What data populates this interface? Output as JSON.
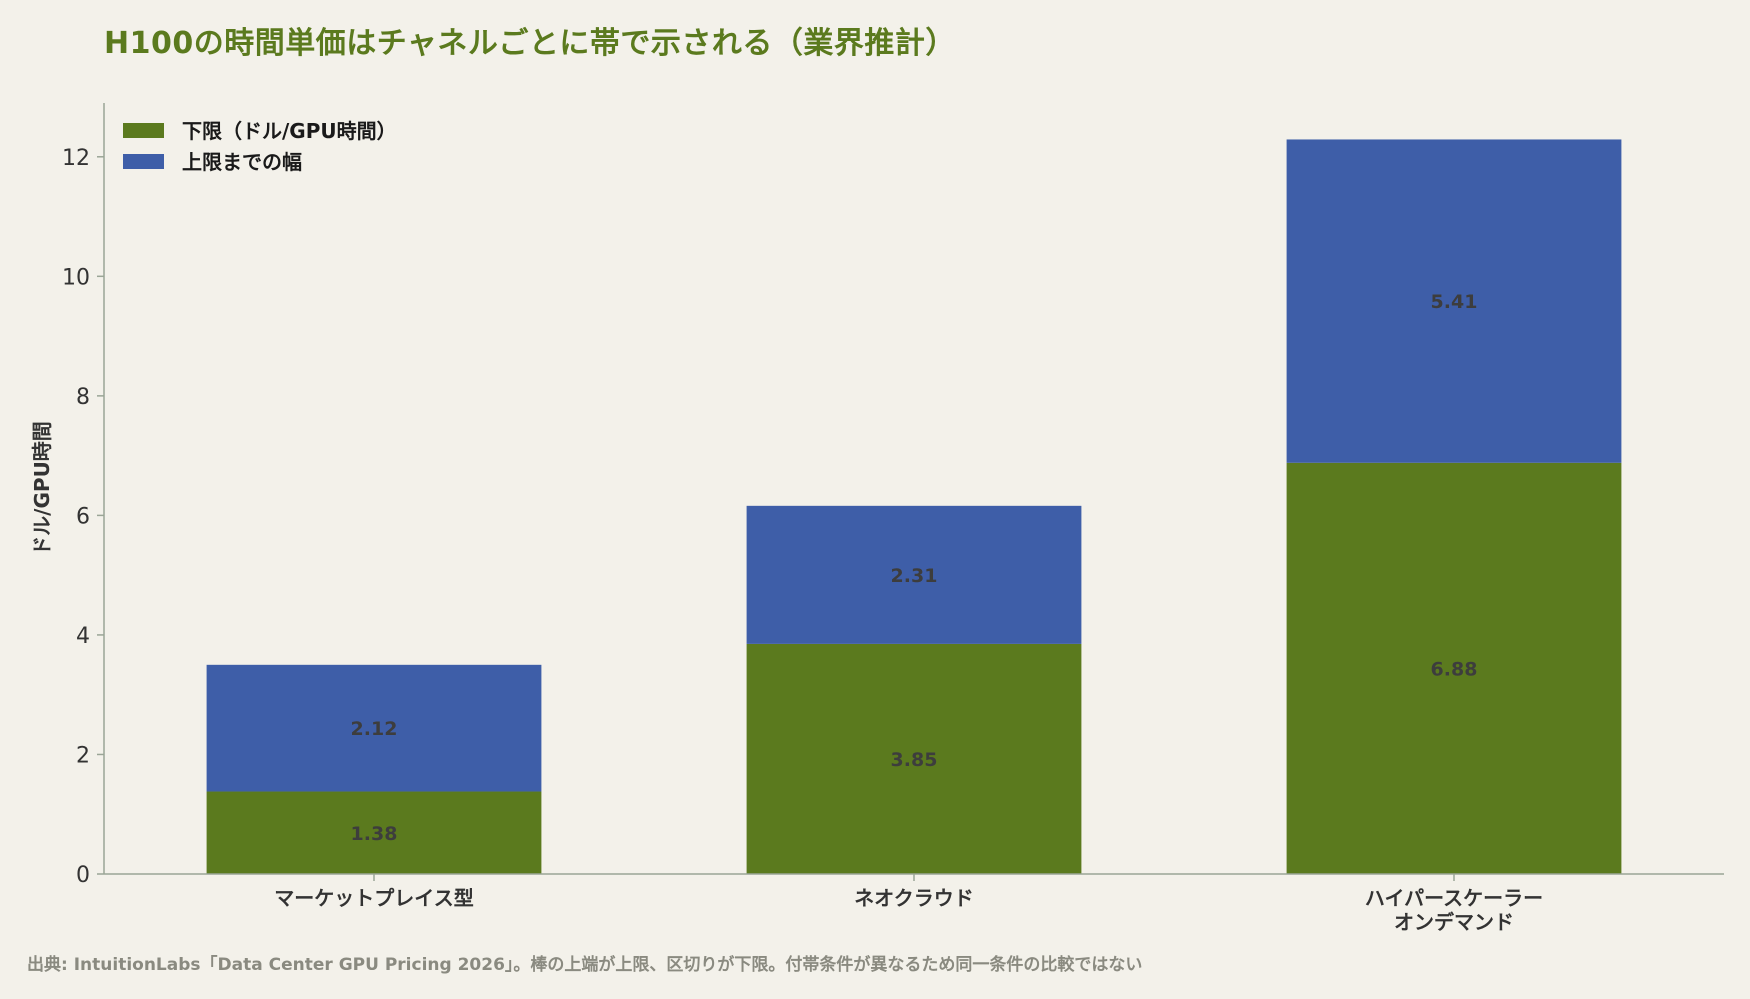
{
  "chart_data": {
    "type": "bar",
    "stacked": true,
    "title": "H100の時間単価はチャネルごとに帯で示される（業界推計）",
    "ylabel": "ドル/GPU時間",
    "xlabel": "",
    "ylim": [
      0,
      12.9
    ],
    "yticks": [
      0,
      2,
      4,
      6,
      8,
      10,
      12
    ],
    "categories": [
      [
        "マーケットプレイス型"
      ],
      [
        "ネオクラウド"
      ],
      [
        "ハイパースケーラー",
        "オンデマンド"
      ]
    ],
    "series": [
      {
        "name": "下限（ドル/GPU時間）",
        "color": "#5b7a1e",
        "values": [
          1.38,
          3.85,
          6.88
        ],
        "labels": [
          "1.38",
          "3.85",
          "6.88"
        ]
      },
      {
        "name": "上限までの幅",
        "color": "#3e5ea8",
        "values": [
          2.12,
          2.31,
          5.41
        ],
        "labels": [
          "2.12",
          "2.31",
          "5.41"
        ]
      }
    ],
    "legend_position": "top-left",
    "grid": false
  },
  "source_note": "出典: IntuitionLabs「Data Center GPU Pricing 2026」。棒の上端が上限、区切りが下限。付帯条件が異なるため同一条件の比較ではない",
  "colors": {
    "background": "#f3f1ea",
    "title": "#5b7a1e",
    "axis": "#9aa596"
  }
}
